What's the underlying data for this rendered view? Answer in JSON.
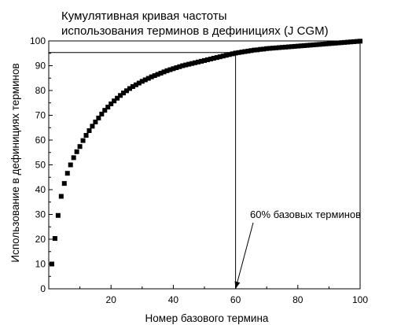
{
  "chart_data": {
    "type": "scatter",
    "title_lines": [
      "Кумулятивная кривая частоты",
      "использования терминов в дефинициях (J CGM)"
    ],
    "xlabel": "Номер базового термина",
    "ylabel": "Использование в дефинициях  терминов",
    "xlim": [
      0,
      100
    ],
    "ylim": [
      0,
      100
    ],
    "xticks": [
      20,
      40,
      60,
      80,
      100
    ],
    "yticks": [
      0,
      10,
      20,
      30,
      40,
      50,
      60,
      70,
      80,
      90,
      100
    ],
    "grid": false,
    "marker": "square",
    "marker_color": "#000000",
    "annotation": {
      "text": "60% базовых терминов",
      "arrow_to": [
        60,
        0
      ]
    },
    "reference_lines": [
      {
        "orientation": "horizontal",
        "y": 95.3,
        "x_from": 0,
        "x_to": 60
      },
      {
        "orientation": "vertical",
        "x": 60,
        "y_from": 0,
        "y_to": 95.3
      }
    ],
    "x": [
      1,
      2,
      3,
      4,
      5,
      6,
      7,
      8,
      9,
      10,
      11,
      12,
      13,
      14,
      15,
      16,
      17,
      18,
      19,
      20,
      21,
      22,
      23,
      24,
      25,
      26,
      27,
      28,
      29,
      30,
      31,
      32,
      33,
      34,
      35,
      36,
      37,
      38,
      39,
      40,
      41,
      42,
      43,
      44,
      45,
      46,
      47,
      48,
      49,
      50,
      51,
      52,
      53,
      54,
      55,
      56,
      57,
      58,
      59,
      60,
      61,
      62,
      63,
      64,
      65,
      66,
      67,
      68,
      69,
      70,
      71,
      72,
      73,
      74,
      75,
      76,
      77,
      78,
      79,
      80,
      81,
      82,
      83,
      84,
      85,
      86,
      87,
      88,
      89,
      90,
      91,
      92,
      93,
      94,
      95,
      96,
      97,
      98,
      99,
      100
    ],
    "y": [
      10.0,
      20.3,
      29.6,
      37.3,
      42.5,
      46.6,
      50.0,
      52.9,
      55.3,
      57.4,
      59.8,
      61.9,
      63.8,
      65.6,
      67.3,
      68.9,
      70.5,
      72.0,
      73.3,
      74.6,
      75.8,
      76.9,
      78.0,
      79.0,
      79.9,
      80.8,
      81.6,
      82.3,
      83.0,
      83.7,
      84.3,
      84.9,
      85.5,
      86.0,
      86.5,
      87.0,
      87.5,
      88.0,
      88.4,
      88.8,
      89.2,
      89.6,
      90.0,
      90.3,
      90.6,
      90.9,
      91.2,
      91.5,
      91.8,
      92.1,
      92.4,
      92.7,
      93.0,
      93.3,
      93.6,
      93.9,
      94.2,
      94.5,
      94.8,
      95.1,
      95.3,
      95.5,
      95.7,
      95.9,
      96.1,
      96.3,
      96.4,
      96.6,
      96.7,
      96.9,
      97.0,
      97.1,
      97.2,
      97.3,
      97.4,
      97.5,
      97.6,
      97.7,
      97.8,
      97.9,
      98.0,
      98.1,
      98.2,
      98.3,
      98.4,
      98.5,
      98.6,
      98.7,
      98.8,
      98.9,
      99.0,
      99.1,
      99.2,
      99.3,
      99.4,
      99.5,
      99.6,
      99.7,
      99.8,
      99.9
    ]
  }
}
